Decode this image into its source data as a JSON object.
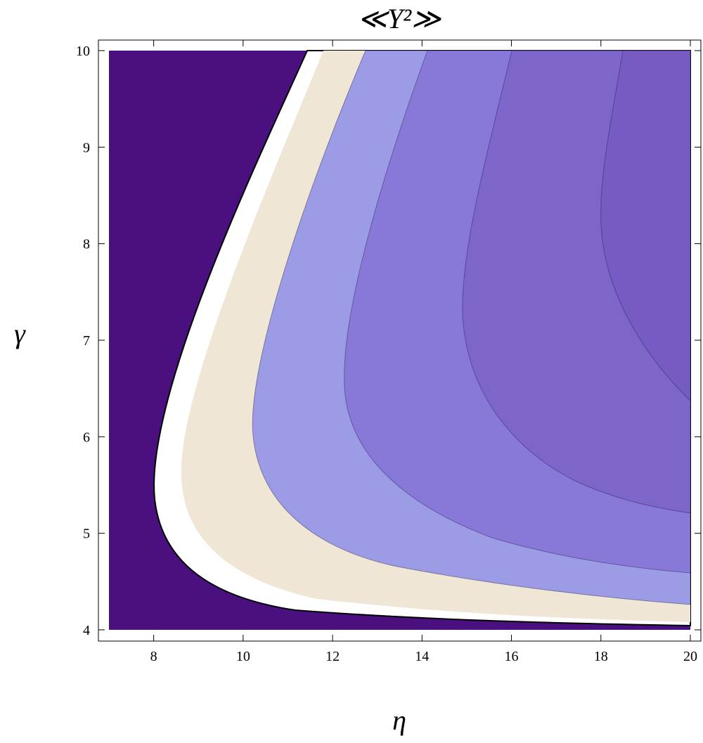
{
  "chart_data": {
    "type": "contour",
    "title": "≪Y²≫",
    "x_label": "η",
    "y_label": "γ",
    "xlim": [
      7,
      20
    ],
    "ylim": [
      4,
      10
    ],
    "xticks": [
      8,
      10,
      12,
      14,
      16,
      18,
      20
    ],
    "yticks": [
      4,
      5,
      6,
      7,
      8,
      9,
      10
    ],
    "colors": [
      "#4a1080",
      "#ffffff",
      "#efe6d6",
      "#9c9be6",
      "#8879d9",
      "#7d65ca",
      "#755bc2"
    ]
  }
}
